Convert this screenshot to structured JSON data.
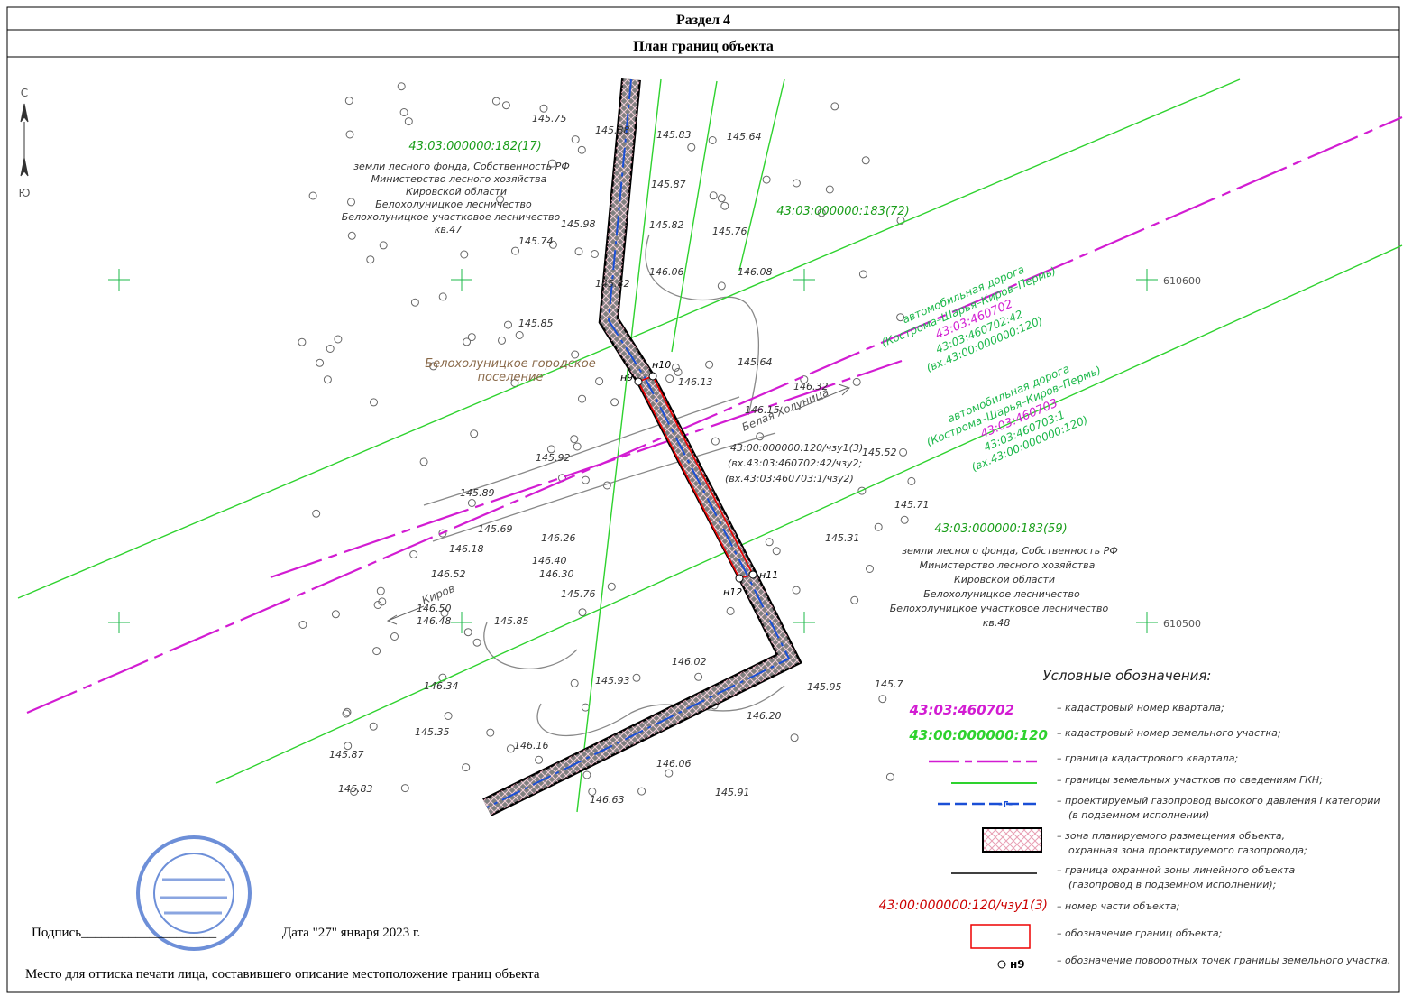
{
  "header": {
    "section": "Раздел 4",
    "title": "План границ объекта"
  },
  "compass": {
    "north": "С",
    "south": "Ю"
  },
  "map": {
    "parcels": [
      "43:03:000000:182(17)",
      "43:03:000000:183(72)",
      "43:03:000000:183(59)"
    ],
    "forest_north": [
      "земли лесного фонда, Собственность РФ",
      "Министерство лесного хозяйства",
      "Кировской области",
      "Белохолуницкое лесничество",
      "Белохолуницкое участковое лесничество",
      "кв.47"
    ],
    "forest_south": [
      "земли лесного фонда, Собственность РФ",
      "Министерство лесного хозяйства",
      "Кировской области",
      "Белохолуницкое лесничество",
      "Белохолуницкое участковое лесничество",
      "кв.48"
    ],
    "road_north": [
      "автомобильная дорога",
      "(Кострома–Шарья–Киров–Пермь)",
      "43:03:460702",
      "43:03:460702:42",
      "(вх.43:00:000000:120)"
    ],
    "road_south": [
      "автомобильная дорога",
      "(Кострома–Шарья–Киров–Пермь)",
      "43:03:460703",
      "43:03:460703:1",
      "(вх.43:00:000000:120)"
    ],
    "part": [
      "43:00:000000:120/чзу1(3)",
      "(вх.43:03:460702:42/чзу2;",
      "(вх.43:03:460703:1/чзу2)"
    ],
    "settlement": [
      "Белохолуницкое городское",
      "поселение"
    ],
    "river": "Белая Холуница",
    "direction": "Киров",
    "grid_labels": [
      "610600",
      "610500"
    ],
    "points": [
      "н9",
      "н10",
      "н11",
      "н12"
    ],
    "elevations": [
      "145.75",
      "145.88",
      "145.83",
      "145.64",
      "145.87",
      "145.98",
      "145.82",
      "145.76",
      "145.74",
      "146.06",
      "146.08",
      "145.82",
      "145.85",
      "145.64",
      "146.13",
      "146.32",
      "146.15",
      "145.52",
      "145.92",
      "145.89",
      "145.69",
      "146.18",
      "146.26",
      "146.40",
      "146.30",
      "146.52",
      "146.50",
      "146.48",
      "145.76",
      "145.85",
      "145.71",
      "145.31",
      "145.93",
      "145.35",
      "146.16",
      "146.34",
      "146.02",
      "146.20",
      "145.95",
      "145.7",
      "145.87",
      "145.83",
      "146.06",
      "145.91",
      "146.63"
    ]
  },
  "legend": {
    "title": "Условные обозначения:",
    "items": [
      {
        "sample": "43:03:460702",
        "text": "– кадастровый номер квартала;"
      },
      {
        "sample": "43:00:000000:120",
        "text": "– кадастровый номер земельного участка;"
      },
      {
        "text": "– граница кадастрового квартала;"
      },
      {
        "text": "– границы земельных участков по сведениям ГКН;"
      },
      {
        "sample": "-г-",
        "text": "– проектируемый газопровод высокого давления I категории",
        "text2": "(в подземном исполнении)"
      },
      {
        "text": "– зона планируемого размещения объекта,",
        "text2": "охранная зона проектируемого газопровода;"
      },
      {
        "text": "– граница охранной зоны линейного объекта",
        "text2": "(газопровод в подземном исполнении);"
      },
      {
        "sample": "43:00:000000:120/чзу1(3)",
        "text": "– номер части объекта;"
      },
      {
        "text": "– обозначение границ объекта;"
      },
      {
        "sample": "н9",
        "text": "– обозначение поворотных точек границы земельного участка."
      }
    ]
  },
  "footer": {
    "signature": "Подпись____________________",
    "date": "Дата \"27\" января 2023 г.",
    "stamp_note": "Место для оттиска печати лица, составившего описание местоположение границ объекта"
  }
}
